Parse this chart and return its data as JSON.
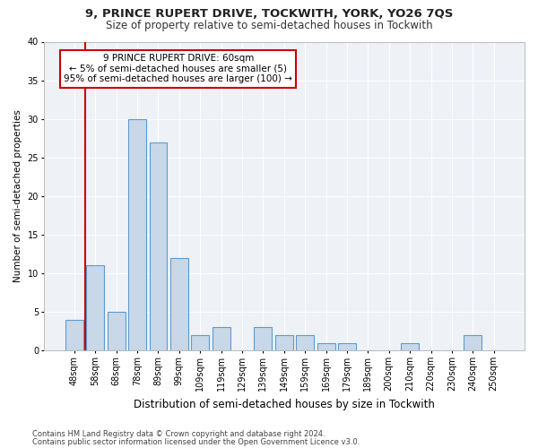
{
  "title1": "9, PRINCE RUPERT DRIVE, TOCKWITH, YORK, YO26 7QS",
  "title2": "Size of property relative to semi-detached houses in Tockwith",
  "xlabel": "Distribution of semi-detached houses by size in Tockwith",
  "ylabel": "Number of semi-detached properties",
  "footnote1": "Contains HM Land Registry data © Crown copyright and database right 2024.",
  "footnote2": "Contains public sector information licensed under the Open Government Licence v3.0.",
  "annotation_line1": "9 PRINCE RUPERT DRIVE: 60sqm",
  "annotation_line2": "← 5% of semi-detached houses are smaller (5)",
  "annotation_line3": "95% of semi-detached houses are larger (100) →",
  "bar_labels": [
    "48sqm",
    "58sqm",
    "68sqm",
    "78sqm",
    "89sqm",
    "99sqm",
    "109sqm",
    "119sqm",
    "129sqm",
    "139sqm",
    "149sqm",
    "159sqm",
    "169sqm",
    "179sqm",
    "189sqm",
    "200sqm",
    "210sqm",
    "220sqm",
    "230sqm",
    "240sqm",
    "250sqm"
  ],
  "bar_values": [
    4,
    11,
    5,
    30,
    27,
    12,
    2,
    3,
    0,
    3,
    2,
    2,
    1,
    1,
    0,
    0,
    1,
    0,
    0,
    2,
    0
  ],
  "bar_color": "#c8d8e8",
  "bar_edge_color": "#5b9bd5",
  "ylim": [
    0,
    40
  ],
  "yticks": [
    0,
    5,
    10,
    15,
    20,
    25,
    30,
    35,
    40
  ],
  "vline_color": "#cc0000",
  "annotation_box_edge": "#cc0000",
  "background_color": "#eef2f7",
  "grid_color": "#ffffff",
  "title1_fontsize": 9.5,
  "title2_fontsize": 8.5,
  "xlabel_fontsize": 8.5,
  "ylabel_fontsize": 7.5,
  "tick_fontsize": 7,
  "footnote_fontsize": 6,
  "annot_fontsize": 7.5,
  "vline_bar_index": 1
}
